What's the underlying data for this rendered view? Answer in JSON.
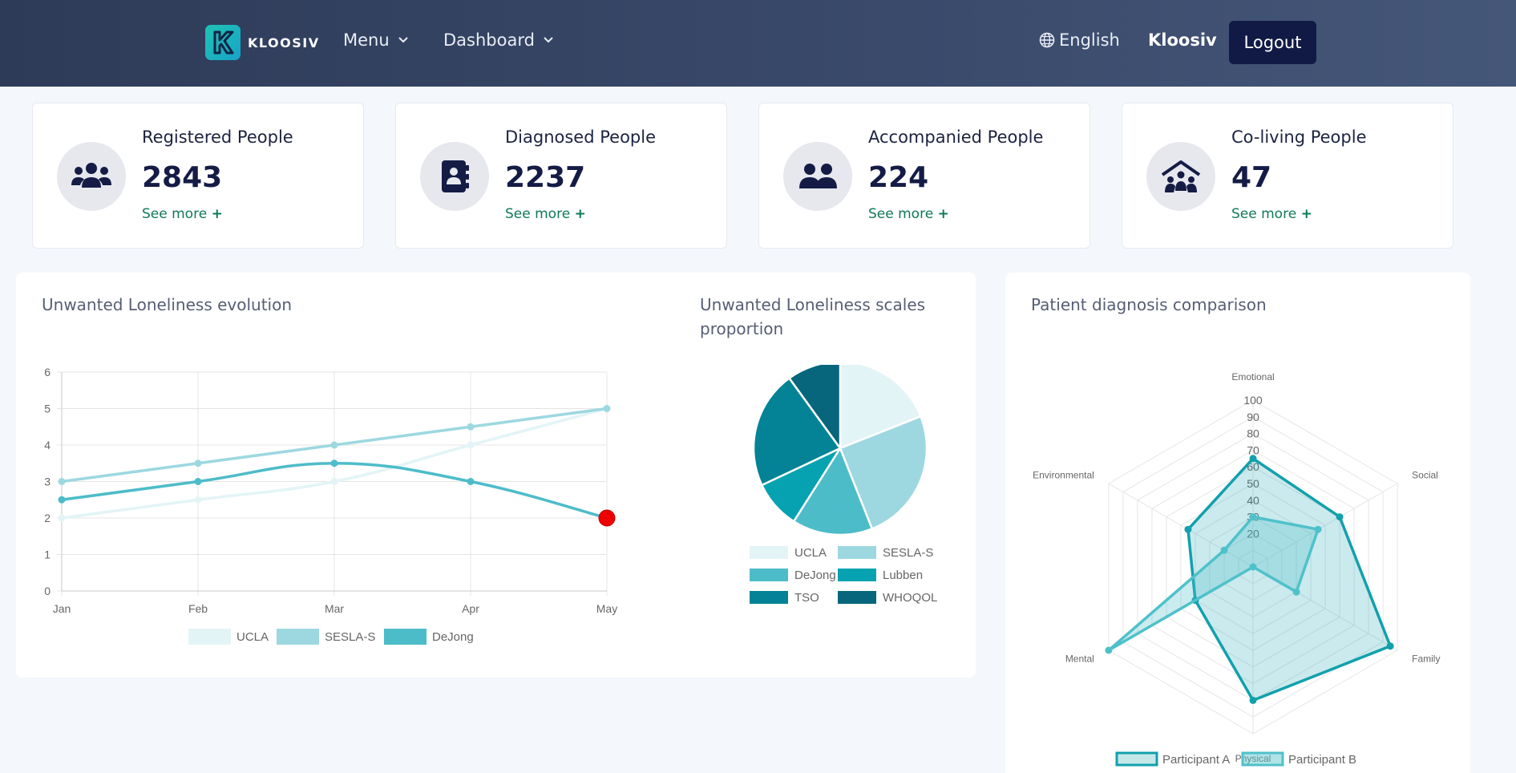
{
  "header": {
    "brand": "KLOOSIV",
    "nav": [
      {
        "label": "Menu"
      },
      {
        "label": "Dashboard"
      }
    ],
    "language": "English",
    "user_name": "Kloosiv",
    "logout_label": "Logout"
  },
  "stats": [
    {
      "label": "Registered People",
      "value": "2843",
      "more": "See more",
      "icon": "users-icon"
    },
    {
      "label": "Diagnosed People",
      "value": "2237",
      "more": "See more",
      "icon": "address-book-icon"
    },
    {
      "label": "Accompanied People",
      "value": "224",
      "more": "See more",
      "icon": "user-group-icon"
    },
    {
      "label": "Co-living People",
      "value": "47",
      "more": "See more",
      "icon": "house-people-icon"
    }
  ],
  "panels": {
    "line_title": "Unwanted Loneliness evolution",
    "pie_title": "Unwanted Loneliness scales proportion",
    "radar_title": "Patient diagnosis comparison"
  },
  "colors": {
    "UCLA": "#e3f4f6",
    "SESLA-S": "#9dd8e0",
    "DeJong": "#4dbcc9",
    "Lubben": "#06a2b1",
    "TSO": "#038395",
    "WHOQOL": "#07667c",
    "Participant A": "#12a0ad",
    "Participant B": "#4fc1ca"
  },
  "chart_data": [
    {
      "type": "line",
      "title": "Unwanted Loneliness evolution",
      "categories": [
        "Jan",
        "Feb",
        "Mar",
        "Apr",
        "May"
      ],
      "ylim": [
        0,
        6
      ],
      "yticks": [
        "0",
        "1",
        "2",
        "3",
        "4",
        "5",
        "6"
      ],
      "grid": true,
      "legend": "bottom",
      "series": [
        {
          "name": "UCLA",
          "values": [
            2,
            2.5,
            3,
            4,
            5
          ]
        },
        {
          "name": "SESLA-S",
          "values": [
            3,
            3.5,
            4,
            4.5,
            5
          ]
        },
        {
          "name": "DeJong",
          "values": [
            2.5,
            3,
            3.5,
            3,
            2
          ]
        }
      ]
    },
    {
      "type": "pie",
      "title": "Unwanted Loneliness scales proportion",
      "legend": "bottom",
      "labels": [
        "UCLA",
        "SESLA-S",
        "DeJong",
        "Lubben",
        "TSO",
        "WHOQOL"
      ],
      "values": [
        19,
        25,
        15,
        9,
        22,
        10
      ]
    },
    {
      "type": "radar",
      "title": "Patient diagnosis comparison",
      "axes": [
        "Emotional",
        "Social",
        "Family",
        "Physical",
        "Mental",
        "Environmental"
      ],
      "rlim": [
        0,
        100
      ],
      "rticks": [
        "20",
        "30",
        "40",
        "50",
        "60",
        "70",
        "80",
        "90",
        "100"
      ],
      "legend": "bottom",
      "series": [
        {
          "name": "Participant A",
          "values": [
            65,
            60,
            95,
            80,
            40,
            45
          ]
        },
        {
          "name": "Participant B",
          "values": [
            30,
            45,
            30,
            0,
            100,
            20
          ]
        }
      ]
    }
  ]
}
